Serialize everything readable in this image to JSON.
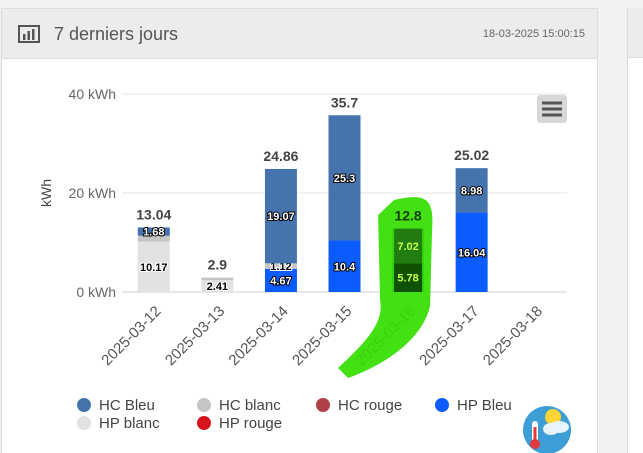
{
  "panel": {
    "title": "7 derniers jours",
    "timestamp": "18-03-2025 15:00:15",
    "header_icon": "bar-chart-icon",
    "menu_icon": "hamburger-menu-icon",
    "weather_icon": "weather-thermometer-icon"
  },
  "chart_data": {
    "type": "bar",
    "stacked": true,
    "ylabel": "kWh",
    "ylim": [
      0,
      40
    ],
    "yticks": [
      "0 kWh",
      "20 kWh",
      "40 kWh"
    ],
    "ytick_values": [
      0,
      20,
      40
    ],
    "grid": true,
    "categories": [
      "2025-03-12",
      "2025-03-13",
      "2025-03-14",
      "2025-03-15",
      "2025-03-16",
      "2025-03-17",
      "2025-03-18"
    ],
    "totals": [
      "13.04",
      "2.9",
      "24.86",
      "35.7",
      "12.8",
      "25.02",
      ""
    ],
    "total_values": [
      13.04,
      2.9,
      24.86,
      35.7,
      12.8,
      25.02,
      null
    ],
    "series": [
      {
        "name": "HP blanc",
        "color": "#e2e2e2",
        "text_color": "#000000",
        "values": [
          10.17,
          2.41,
          null,
          null,
          null,
          null,
          null
        ],
        "labels": [
          "10.17",
          "2.41",
          "",
          "",
          "",
          "",
          ""
        ]
      },
      {
        "name": "HP Bleu",
        "color": "#0b5cff",
        "text_color": "#ffffff",
        "values": [
          null,
          null,
          4.67,
          10.4,
          5.78,
          16.04,
          null
        ],
        "labels": [
          "",
          "",
          "4.67",
          "10.4",
          "5.78",
          "16.04",
          ""
        ]
      },
      {
        "name": "HC blanc",
        "color": "#c5c5c5",
        "text_color": "#000000",
        "values": [
          1.19,
          0.49,
          1.12,
          null,
          null,
          null,
          null
        ],
        "labels": [
          "",
          "",
          "1.12",
          "",
          "",
          "",
          ""
        ]
      },
      {
        "name": "HC Bleu",
        "color": "#4573ad",
        "text_color": "#ffffff",
        "values": [
          1.68,
          null,
          19.07,
          25.3,
          7.02,
          8.98,
          null
        ],
        "labels": [
          "1.68",
          "",
          "19.07",
          "25.3",
          "7.02",
          "8.98",
          ""
        ]
      },
      {
        "name": "HC rouge",
        "color": "#b0404a",
        "text_color": "#ffffff",
        "values": [
          null,
          null,
          null,
          null,
          null,
          null,
          null
        ],
        "labels": [
          "",
          "",
          "",
          "",
          "",
          "",
          ""
        ]
      },
      {
        "name": "HP rouge",
        "color": "#d7141d",
        "text_color": "#ffffff",
        "values": [
          null,
          null,
          null,
          null,
          null,
          null,
          null
        ],
        "labels": [
          "",
          "",
          "",
          "",
          "",
          "",
          ""
        ]
      }
    ],
    "legend": {
      "placement": "bottom",
      "items": [
        {
          "name": "HC Bleu",
          "color": "#4573ad"
        },
        {
          "name": "HC blanc",
          "color": "#c5c5c5"
        },
        {
          "name": "HC rouge",
          "color": "#b0404a"
        },
        {
          "name": "HP Bleu",
          "color": "#0b5cff"
        },
        {
          "name": "HP blanc",
          "color": "#e2e2e2"
        },
        {
          "name": "HP rouge",
          "color": "#d7141d"
        }
      ]
    },
    "annotation": {
      "type": "highlighter-scribble",
      "category": "2025-03-16",
      "color": "#33dd00"
    }
  }
}
